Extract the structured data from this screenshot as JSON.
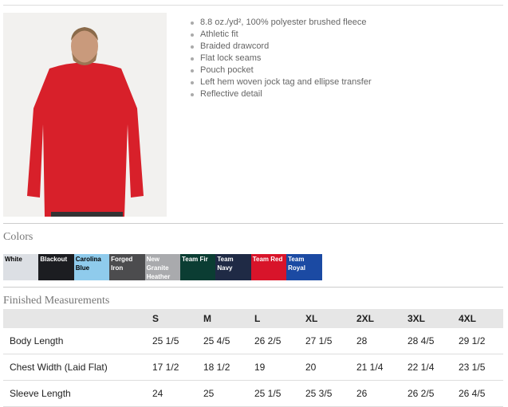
{
  "product_image_alt": "Red hooded fleece worn by model",
  "features": [
    "8.8 oz./yd², 100% polyester brushed fleece",
    "Athletic fit",
    "Braided drawcord",
    "Flat lock seams",
    "Pouch pocket",
    "Left hem woven jock tag and ellipse transfer",
    "Reflective detail"
  ],
  "colors_heading": "Colors",
  "colors": [
    {
      "name": "White",
      "hex": "#dcdfe4",
      "text": "#000000"
    },
    {
      "name": "Blackout",
      "hex": "#1c1d21",
      "text": "#ffffff"
    },
    {
      "name": "Carolina Blue",
      "hex": "#8fcbec",
      "text": "#000000"
    },
    {
      "name": "Forged Iron",
      "hex": "#4c4c4e",
      "text": "#ffffff"
    },
    {
      "name": "New Granite Heather",
      "hex": "#a9aaad",
      "text": "#ffffff"
    },
    {
      "name": "Team Fir",
      "hex": "#0b3d33",
      "text": "#ffffff"
    },
    {
      "name": "Team Navy",
      "hex": "#1f2a45",
      "text": "#ffffff"
    },
    {
      "name": "Team Red",
      "hex": "#d8142a",
      "text": "#ffffff"
    },
    {
      "name": "Team Royal",
      "hex": "#1b4aa3",
      "text": "#ffffff"
    }
  ],
  "measurements_heading": "Finished Measurements",
  "sizes": [
    "S",
    "M",
    "L",
    "XL",
    "2XL",
    "3XL",
    "4XL"
  ],
  "rows": [
    {
      "label": "Body Length",
      "values": [
        "25 1/5",
        "25 4/5",
        "26 2/5",
        "27 1/5",
        "28",
        "28 4/5",
        "29 1/2"
      ]
    },
    {
      "label": "Chest Width (Laid Flat)",
      "values": [
        "17 1/2",
        "18 1/2",
        "19",
        "20",
        "21 1/4",
        "22 1/4",
        "23 1/5"
      ]
    },
    {
      "label": "Sleeve Length",
      "values": [
        "24",
        "25",
        "25 1/5",
        "25 3/5",
        "26",
        "26 2/5",
        "26 4/5"
      ]
    }
  ]
}
